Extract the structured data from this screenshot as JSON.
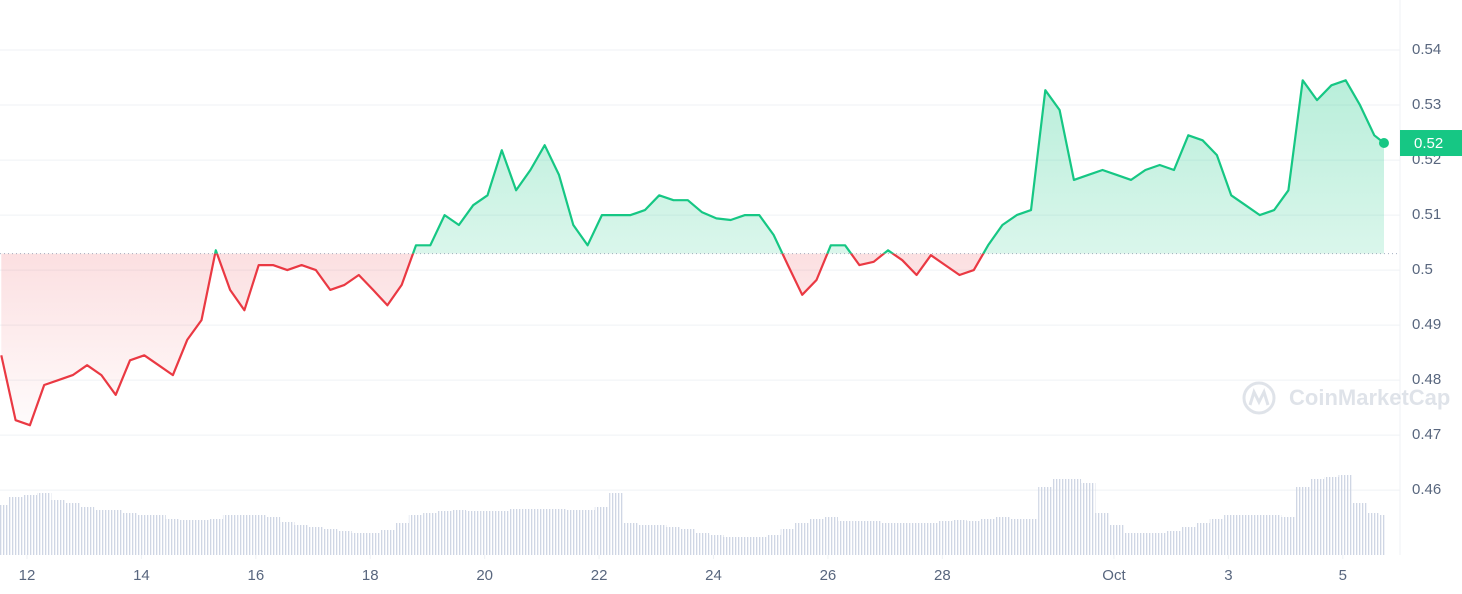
{
  "chart_data": {
    "type": "line",
    "x": [
      -0.45,
      -0.2,
      0.05,
      0.3,
      0.55,
      0.8,
      1.05,
      1.3,
      1.55,
      1.8,
      2.05,
      2.3,
      2.55,
      2.8,
      3.05,
      3.3,
      3.55,
      3.8,
      4.05,
      4.3,
      4.55,
      4.8,
      5.05,
      5.3,
      5.55,
      5.8,
      6.05,
      6.3,
      6.55,
      6.8,
      7.05,
      7.3,
      7.55,
      7.8,
      8.05,
      8.3,
      8.55,
      8.8,
      9.05,
      9.3,
      9.55,
      9.8,
      10.05,
      10.3,
      10.55,
      10.8,
      11.05,
      11.3,
      11.55,
      11.8,
      12.05,
      12.3,
      12.55,
      12.8,
      13.05,
      13.3,
      13.55,
      13.8,
      14.05,
      14.3,
      14.55,
      14.8,
      15.05,
      15.3,
      15.55,
      15.8,
      16.05,
      16.3,
      16.55,
      16.8,
      17.05,
      17.3,
      17.55,
      17.8,
      18.05,
      18.3,
      18.55,
      18.8,
      19.05,
      19.3,
      19.55,
      19.8,
      20.05,
      20.3,
      20.55,
      20.8,
      21.05,
      21.3,
      21.55,
      21.8,
      22.05,
      22.3,
      22.55,
      22.8,
      23.05,
      23.3,
      23.55,
      23.72
    ],
    "values": [
      0.4845,
      0.4727,
      0.4718,
      0.4791,
      0.48,
      0.4809,
      0.4827,
      0.4809,
      0.4773,
      0.4836,
      0.4845,
      0.4827,
      0.4809,
      0.4873,
      0.4909,
      0.5036,
      0.4964,
      0.4927,
      0.5009,
      0.5009,
      0.5,
      0.5009,
      0.5,
      0.4964,
      0.4973,
      0.4991,
      0.4964,
      0.4936,
      0.4973,
      0.5045,
      0.5045,
      0.51,
      0.5082,
      0.5118,
      0.5136,
      0.5218,
      0.5145,
      0.5182,
      0.5227,
      0.5173,
      0.5082,
      0.5045,
      0.51,
      0.51,
      0.51,
      0.5109,
      0.5136,
      0.5127,
      0.5127,
      0.5105,
      0.5094,
      0.5091,
      0.51,
      0.51,
      0.5064,
      0.5009,
      0.4955,
      0.4982,
      0.5045,
      0.5045,
      0.5009,
      0.5015,
      0.5036,
      0.5018,
      0.4991,
      0.5027,
      0.5009,
      0.4991,
      0.5,
      0.5045,
      0.5082,
      0.51,
      0.5109,
      0.5327,
      0.5291,
      0.5164,
      0.5173,
      0.5182,
      0.5173,
      0.5164,
      0.5182,
      0.5191,
      0.5182,
      0.5245,
      0.5236,
      0.5209,
      0.5136,
      0.5118,
      0.51,
      0.5109,
      0.5145,
      0.5345,
      0.5309,
      0.5336,
      0.5345,
      0.53,
      0.5245,
      0.5231
    ],
    "volume": [
      50,
      58,
      60,
      62,
      55,
      52,
      48,
      45,
      45,
      42,
      40,
      40,
      36,
      35,
      35,
      36,
      40,
      40,
      40,
      38,
      33,
      30,
      28,
      26,
      24,
      22,
      22,
      25,
      32,
      40,
      42,
      44,
      45,
      44,
      44,
      44,
      46,
      46,
      46,
      46,
      45,
      45,
      48,
      62,
      32,
      30,
      30,
      28,
      26,
      22,
      20,
      18,
      18,
      18,
      20,
      26,
      32,
      36,
      38,
      34,
      34,
      34,
      32,
      32,
      32,
      32,
      34,
      35,
      34,
      36,
      38,
      36,
      36,
      68,
      76,
      76,
      72,
      42,
      30,
      22,
      22,
      22,
      24,
      28,
      32,
      36,
      40,
      40,
      40,
      40,
      38,
      68,
      76,
      78,
      80,
      52,
      42,
      40
    ],
    "volume_ylim": [
      0,
      100
    ],
    "last_value_label": "0.52",
    "baseline": 0.503,
    "up_color": "#16c784",
    "down_color": "#ea3943",
    "volume_color": "#cfd6e4",
    "xlim": [
      -0.472,
      24.0
    ],
    "xticks": [
      {
        "value": 0,
        "label": "12"
      },
      {
        "value": 2,
        "label": "14"
      },
      {
        "value": 4,
        "label": "16"
      },
      {
        "value": 6,
        "label": "18"
      },
      {
        "value": 8,
        "label": "20"
      },
      {
        "value": 10,
        "label": "22"
      },
      {
        "value": 12,
        "label": "24"
      },
      {
        "value": 14,
        "label": "26"
      },
      {
        "value": 16,
        "label": "28"
      },
      {
        "value": 19,
        "label": "Oct"
      },
      {
        "value": 21,
        "label": "3"
      },
      {
        "value": 23,
        "label": "5"
      }
    ],
    "ylim": [
      0.4482,
      0.5491
    ],
    "yticks": [
      0.46,
      0.47,
      0.48,
      0.49,
      0.5,
      0.51,
      0.52,
      0.53,
      0.54
    ],
    "grid": true,
    "watermark": "CoinMarketCap"
  }
}
